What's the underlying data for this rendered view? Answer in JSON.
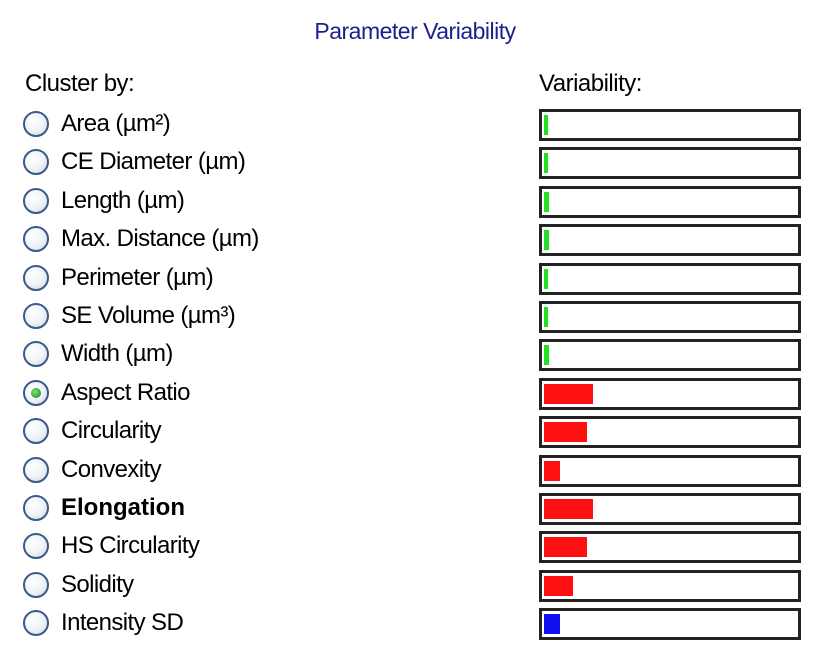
{
  "title": "Parameter Variability",
  "headers": {
    "cluster_by": "Cluster by:",
    "variability": "Variability:"
  },
  "colors": {
    "title": "#1a1f8c",
    "size_params": "#22e022",
    "shape_params": "#ff1010",
    "intensity_params": "#1010ee"
  },
  "parameters": [
    {
      "label": "Area (µm²)",
      "selected": false,
      "bold": false,
      "variability": 0.012,
      "color": "#22e022"
    },
    {
      "label": "CE Diameter (µm)",
      "selected": false,
      "bold": false,
      "variability": 0.008,
      "color": "#22e022"
    },
    {
      "label": "Length (µm)",
      "selected": false,
      "bold": false,
      "variability": 0.02,
      "color": "#22e022"
    },
    {
      "label": "Max. Distance (µm)",
      "selected": false,
      "bold": false,
      "variability": 0.02,
      "color": "#22e022"
    },
    {
      "label": "Perimeter (µm)",
      "selected": false,
      "bold": false,
      "variability": 0.012,
      "color": "#22e022"
    },
    {
      "label": "SE Volume (µm³)",
      "selected": false,
      "bold": false,
      "variability": 0.008,
      "color": "#22e022"
    },
    {
      "label": "Width (µm)",
      "selected": false,
      "bold": false,
      "variability": 0.02,
      "color": "#22e022"
    },
    {
      "label": "Aspect Ratio",
      "selected": true,
      "bold": false,
      "variability": 0.195,
      "color": "#ff1010"
    },
    {
      "label": "Circularity",
      "selected": false,
      "bold": false,
      "variability": 0.17,
      "color": "#ff1010"
    },
    {
      "label": "Convexity",
      "selected": false,
      "bold": false,
      "variability": 0.065,
      "color": "#ff1010"
    },
    {
      "label": "Elongation",
      "selected": false,
      "bold": true,
      "variability": 0.195,
      "color": "#ff1010"
    },
    {
      "label": "HS Circularity",
      "selected": false,
      "bold": false,
      "variability": 0.17,
      "color": "#ff1010"
    },
    {
      "label": "Solidity",
      "selected": false,
      "bold": false,
      "variability": 0.115,
      "color": "#ff1010"
    },
    {
      "label": "Intensity SD",
      "selected": false,
      "bold": false,
      "variability": 0.065,
      "color": "#1010ee"
    }
  ]
}
